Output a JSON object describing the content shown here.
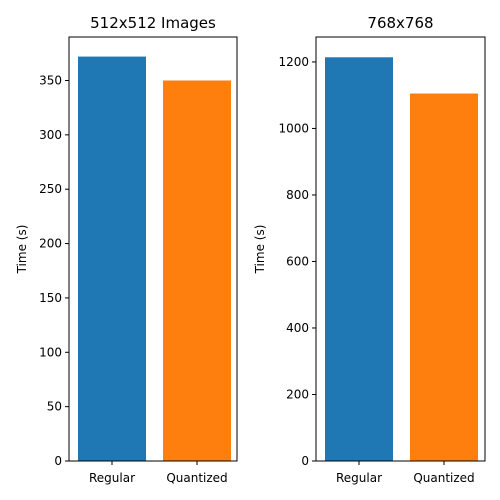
{
  "chart_data": [
    {
      "type": "bar",
      "title": "512x512 Images",
      "categories": [
        "Regular",
        "Quantized"
      ],
      "values": [
        372,
        350
      ],
      "colors": [
        "#1f77b4",
        "#ff7f0e"
      ],
      "xlabel": "",
      "ylabel": "Time (s)",
      "ylim": [
        0,
        390
      ],
      "yticks": [
        0,
        50,
        100,
        150,
        200,
        250,
        300,
        350
      ],
      "grid": false
    },
    {
      "type": "bar",
      "title": "768x768",
      "categories": [
        "Regular",
        "Quantized"
      ],
      "values": [
        1214,
        1105
      ],
      "colors": [
        "#1f77b4",
        "#ff7f0e"
      ],
      "xlabel": "",
      "ylabel": "Time (s)",
      "ylim": [
        0,
        1275
      ],
      "yticks": [
        0,
        200,
        400,
        600,
        800,
        1000,
        1200
      ],
      "grid": false
    }
  ]
}
